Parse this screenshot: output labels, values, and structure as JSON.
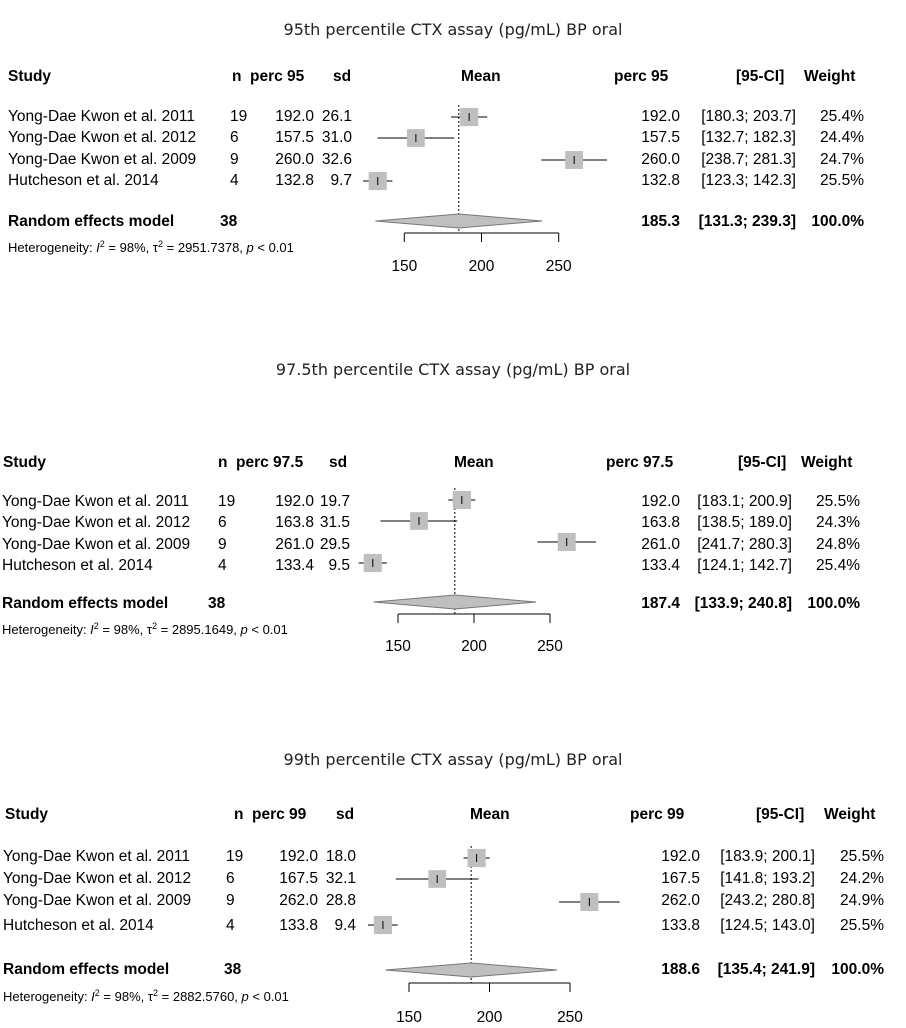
{
  "chart_data": [
    {
      "type": "forest",
      "title": "95th percentile CTX assay (pg/mL) BP oral",
      "headers": {
        "study": "Study",
        "n": "n",
        "perc": "perc 95",
        "sd": "sd",
        "mean": "Mean",
        "perc_right": "perc 95",
        "ci": "[95-CI]",
        "weight": "Weight"
      },
      "studies": [
        {
          "name": "Yong-Dae Kwon et al. 2011",
          "n": "19",
          "perc": "192.0",
          "sd": "26.1",
          "est_text": "192.0",
          "ci_text": "[180.3; 203.7]",
          "weight_text": "25.4%",
          "est": 192.0,
          "lo": 180.3,
          "hi": 203.7,
          "w": 25.4
        },
        {
          "name": "Yong-Dae Kwon et al. 2012",
          "n": "6",
          "perc": "157.5",
          "sd": "31.0",
          "est_text": "157.5",
          "ci_text": "[132.7; 182.3]",
          "weight_text": "24.4%",
          "est": 157.5,
          "lo": 132.7,
          "hi": 182.3,
          "w": 24.4
        },
        {
          "name": "Yong-Dae Kwon et al. 2009",
          "n": "9",
          "perc": "260.0",
          "sd": "32.6",
          "est_text": "260.0",
          "ci_text": "[238.7; 281.3]",
          "weight_text": "24.7%",
          "est": 260.0,
          "lo": 238.7,
          "hi": 281.3,
          "w": 24.7
        },
        {
          "name": "Hutcheson et al. 2014",
          "n": "4",
          "perc": "132.8",
          "sd": "9.7",
          "est_text": "132.8",
          "ci_text": "[123.3; 142.3]",
          "weight_text": "25.5%",
          "est": 132.8,
          "lo": 123.3,
          "hi": 142.3,
          "w": 25.5
        }
      ],
      "summary": {
        "label": "Random effects model",
        "n": "38",
        "est_text": "185.3",
        "ci_text": "[131.3; 239.3]",
        "weight_text": "100.0%",
        "est": 185.3,
        "lo": 131.3,
        "hi": 239.3
      },
      "heterogeneity": {
        "prefix": "Heterogeneity: ",
        "i2_symbol": "I",
        "i2_text": " = 98%, ",
        "tau_symbol": "τ",
        "tau_text": " = 2951.7378, ",
        "p_symbol": "p",
        "p_text": " < 0.01"
      },
      "axis_ticks": [
        150,
        200,
        250
      ],
      "tick_labels": [
        "150",
        "200",
        "250"
      ],
      "xlim": [
        100,
        290
      ]
    },
    {
      "type": "forest",
      "title": "97.5th percentile CTX assay (pg/mL) BP oral",
      "headers": {
        "study": "Study",
        "n": "n",
        "perc": "perc 97.5",
        "sd": "sd",
        "mean": "Mean",
        "perc_right": "perc 97.5",
        "ci": "[95-CI]",
        "weight": "Weight"
      },
      "studies": [
        {
          "name": "Yong-Dae Kwon et al. 2011",
          "n": "19",
          "perc": "192.0",
          "sd": "19.7",
          "est_text": "192.0",
          "ci_text": "[183.1; 200.9]",
          "weight_text": "25.5%",
          "est": 192.0,
          "lo": 183.1,
          "hi": 200.9,
          "w": 25.5
        },
        {
          "name": "Yong-Dae Kwon et al. 2012",
          "n": "6",
          "perc": "163.8",
          "sd": "31.5",
          "est_text": "163.8",
          "ci_text": "[138.5; 189.0]",
          "weight_text": "24.3%",
          "est": 163.8,
          "lo": 138.5,
          "hi": 189.0,
          "w": 24.3
        },
        {
          "name": "Yong-Dae Kwon et al. 2009",
          "n": "9",
          "perc": "261.0",
          "sd": "29.5",
          "est_text": "261.0",
          "ci_text": "[241.7; 280.3]",
          "weight_text": "24.8%",
          "est": 261.0,
          "lo": 241.7,
          "hi": 280.3,
          "w": 24.8
        },
        {
          "name": "Hutcheson et al. 2014",
          "n": "4",
          "perc": "133.4",
          "sd": "9.5",
          "est_text": "133.4",
          "ci_text": "[124.1; 142.7]",
          "weight_text": "25.4%",
          "est": 133.4,
          "lo": 124.1,
          "hi": 142.7,
          "w": 25.4
        }
      ],
      "summary": {
        "label": "Random effects model",
        "n": "38",
        "est_text": "187.4",
        "ci_text": "[133.9; 240.8]",
        "weight_text": "100.0%",
        "est": 187.4,
        "lo": 133.9,
        "hi": 240.8
      },
      "heterogeneity": {
        "prefix": "Heterogeneity: ",
        "i2_symbol": "I",
        "i2_text": " = 98%, ",
        "tau_symbol": "τ",
        "tau_text": " = 2895.1649, ",
        "p_symbol": "p",
        "p_text": " < 0.01"
      },
      "axis_ticks": [
        150,
        200,
        250
      ],
      "tick_labels": [
        "150",
        "200",
        "250"
      ],
      "xlim": [
        100,
        290
      ]
    },
    {
      "type": "forest",
      "title": "99th percentile CTX assay (pg/mL) BP oral",
      "headers": {
        "study": "Study",
        "n": "n",
        "perc": "perc 99",
        "sd": "sd",
        "mean": "Mean",
        "perc_right": "perc 99",
        "ci": "[95-CI]",
        "weight": "Weight"
      },
      "studies": [
        {
          "name": "Yong-Dae Kwon et al. 2011",
          "n": "19",
          "perc": "192.0",
          "sd": "18.0",
          "est_text": "192.0",
          "ci_text": "[183.9; 200.1]",
          "weight_text": "25.5%",
          "est": 192.0,
          "lo": 183.9,
          "hi": 200.1,
          "w": 25.5
        },
        {
          "name": "Yong-Dae Kwon et al. 2012",
          "n": "6",
          "perc": "167.5",
          "sd": "32.1",
          "est_text": "167.5",
          "ci_text": "[141.8; 193.2]",
          "weight_text": "24.2%",
          "est": 167.5,
          "lo": 141.8,
          "hi": 193.2,
          "w": 24.2
        },
        {
          "name": "Yong-Dae Kwon et al. 2009",
          "n": "9",
          "perc": "262.0",
          "sd": "28.8",
          "est_text": "262.0",
          "ci_text": "[243.2; 280.8]",
          "weight_text": "24.9%",
          "est": 262.0,
          "lo": 243.2,
          "hi": 280.8,
          "w": 24.9
        },
        {
          "name": "Hutcheson et al. 2014",
          "n": "4",
          "perc": "133.8",
          "sd": "9.4",
          "est_text": "133.8",
          "ci_text": "[124.5; 143.0]",
          "weight_text": "25.5%",
          "est": 133.8,
          "lo": 124.5,
          "hi": 143.0,
          "w": 25.5
        }
      ],
      "summary": {
        "label": "Random effects model",
        "n": "38",
        "est_text": "188.6",
        "ci_text": "[135.4; 241.9]",
        "weight_text": "100.0%",
        "est": 188.6,
        "lo": 135.4,
        "hi": 241.9
      },
      "heterogeneity": {
        "prefix": "Heterogeneity: ",
        "i2_symbol": "I",
        "i2_text": " = 98%, ",
        "tau_symbol": "τ",
        "tau_text": " = 2882.5760, ",
        "p_symbol": "p",
        "p_text": " < 0.01"
      },
      "axis_ticks": [
        150,
        200,
        250
      ],
      "tick_labels": [
        "150",
        "200",
        "250"
      ],
      "xlim": [
        100,
        290
      ]
    }
  ]
}
